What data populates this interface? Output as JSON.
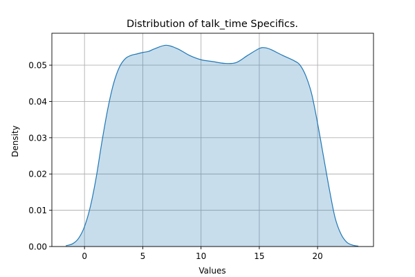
{
  "chart_data": {
    "type": "area",
    "title": "Distribution of talk_time Specifics.",
    "xlabel": "Values",
    "ylabel": "Density",
    "xlim": [
      -2.8,
      24.8
    ],
    "ylim": [
      0,
      0.0588
    ],
    "xticks": [
      0,
      5,
      10,
      15,
      20
    ],
    "yticks": [
      0.0,
      0.01,
      0.02,
      0.03,
      0.04,
      0.05
    ],
    "ytick_labels": [
      "0.00",
      "0.01",
      "0.02",
      "0.03",
      "0.04",
      "0.05"
    ],
    "grid": true,
    "colors": {
      "line": "#1f77b4",
      "fill": "#1f77b4",
      "fill_opacity": 0.25
    },
    "series": [
      {
        "x": [
          -1.6,
          -1.0,
          -0.5,
          0.0,
          0.5,
          1.0,
          1.5,
          2.0,
          2.5,
          3.0,
          3.5,
          4.0,
          4.5,
          5.0,
          5.5,
          6.0,
          7.0,
          8.0,
          9.0,
          10.0,
          11.0,
          12.0,
          13.0,
          14.0,
          15.0,
          15.5,
          16.0,
          17.0,
          18.0,
          18.5,
          19.0,
          19.5,
          20.0,
          20.5,
          21.0,
          21.5,
          22.0,
          22.5,
          23.0,
          23.5
        ],
        "y": [
          0.0002,
          0.0008,
          0.0023,
          0.0055,
          0.011,
          0.019,
          0.029,
          0.038,
          0.045,
          0.0495,
          0.0518,
          0.0527,
          0.0531,
          0.0535,
          0.0538,
          0.0545,
          0.0555,
          0.0545,
          0.0527,
          0.0515,
          0.051,
          0.0505,
          0.0507,
          0.0527,
          0.0546,
          0.0548,
          0.0543,
          0.0527,
          0.0512,
          0.05,
          0.047,
          0.042,
          0.034,
          0.025,
          0.016,
          0.008,
          0.0035,
          0.0012,
          0.0004,
          0.0001
        ]
      }
    ]
  }
}
